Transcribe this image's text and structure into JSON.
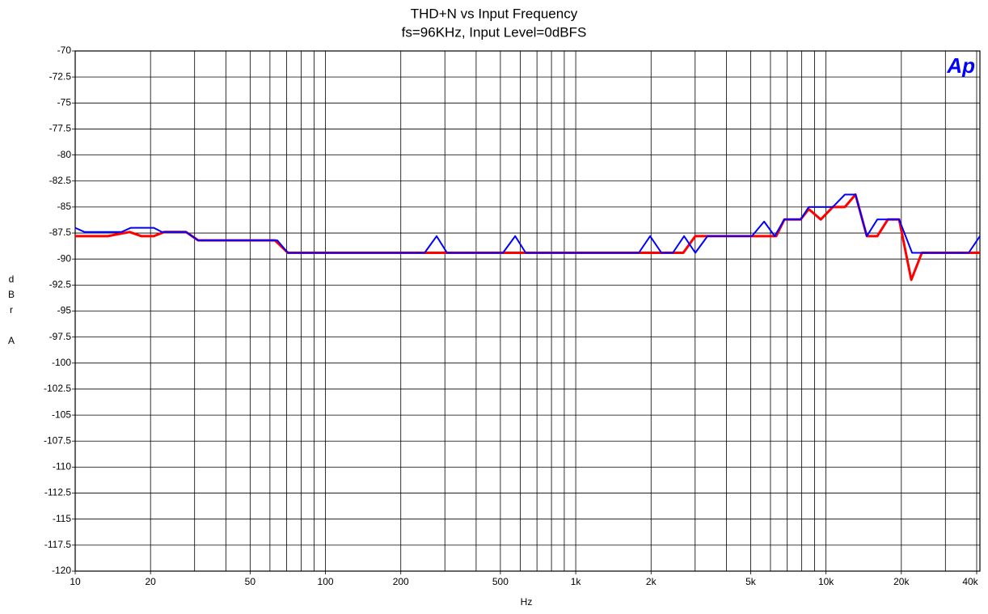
{
  "chart_data": {
    "type": "line",
    "title": "THD+N vs Input Frequency",
    "subtitle": "fs=96KHz, Input Level=0dBFS",
    "x_label": "Hz",
    "y_label": "dBr A",
    "logo": "Ap",
    "x_log": true,
    "grid": true,
    "xlim": [
      10,
      41210
    ],
    "ylim": [
      -120,
      -70
    ],
    "xticks": [
      10,
      20,
      50,
      100,
      200,
      500,
      {
        "value": 1000,
        "label": "1k"
      },
      {
        "value": 2000,
        "label": "2k"
      },
      {
        "value": 5000,
        "label": "5k"
      },
      {
        "value": 10000,
        "label": "10k"
      },
      {
        "value": 20000,
        "label": "20k"
      },
      {
        "value": 40000,
        "label": "40k"
      }
    ],
    "xgrid": [
      10,
      20,
      30,
      40,
      50,
      60,
      70,
      80,
      90,
      100,
      200,
      300,
      400,
      500,
      600,
      700,
      800,
      900,
      1000,
      2000,
      3000,
      4000,
      5000,
      6000,
      7000,
      8000,
      9000,
      10000,
      20000,
      30000,
      40000
    ],
    "yticks": [
      -120,
      -117.5,
      -115,
      -112.5,
      -110,
      -107.5,
      -105,
      -102.5,
      -100,
      -97.5,
      -95,
      -92.5,
      -90,
      -87.5,
      -85,
      -82.5,
      -80,
      -77.5,
      -75,
      -72.5,
      -70
    ],
    "series": [
      {
        "color": "#ff0000",
        "x": [
          10,
          13.5,
          16.5,
          18.4,
          20.6,
          22.7,
          27.7,
          31.0,
          62.8,
          70.8,
          249,
          505,
          1786,
          2497,
          2690,
          3006,
          5058,
          6328,
          6817,
          7913,
          8531,
          9530,
          10640,
          11900,
          13120,
          14560,
          16030,
          17660,
          19600,
          21920,
          24150,
          41210
        ],
        "values": [
          -87.8,
          -87.8,
          -87.4,
          -87.8,
          -87.8,
          -87.4,
          -87.4,
          -88.2,
          -88.2,
          -89.4,
          -89.4,
          -89.4,
          -89.4,
          -89.4,
          -89.4,
          -87.8,
          -87.8,
          -87.8,
          -86.2,
          -86.2,
          -85.2,
          -86.2,
          -85.0,
          -85.0,
          -83.8,
          -87.8,
          -87.8,
          -86.2,
          -86.2,
          -92.0,
          -89.4,
          -89.4
        ]
      },
      {
        "color": "#0000ff",
        "x": [
          10,
          10.9,
          15.3,
          16.7,
          20.6,
          22.2,
          27.7,
          31.0,
          64.2,
          70.8,
          249,
          278,
          306,
          512,
          573,
          631,
          1786,
          1982,
          2200,
          2443,
          2710,
          3006,
          3363,
          5058,
          5659,
          6237,
          6817,
          7913,
          8531,
          10640,
          11900,
          13120,
          14560,
          16030,
          19600,
          22080,
          37160,
          41210
        ],
        "values": [
          -87.0,
          -87.4,
          -87.4,
          -87.0,
          -87.0,
          -87.4,
          -87.4,
          -88.2,
          -88.2,
          -89.4,
          -89.4,
          -87.8,
          -89.4,
          -89.4,
          -87.8,
          -89.4,
          -89.4,
          -87.8,
          -89.4,
          -89.4,
          -87.8,
          -89.4,
          -87.8,
          -87.8,
          -86.4,
          -87.8,
          -86.2,
          -86.2,
          -85.0,
          -85.0,
          -83.8,
          -83.8,
          -87.8,
          -86.2,
          -86.2,
          -89.4,
          -89.4,
          -87.8
        ]
      }
    ]
  }
}
